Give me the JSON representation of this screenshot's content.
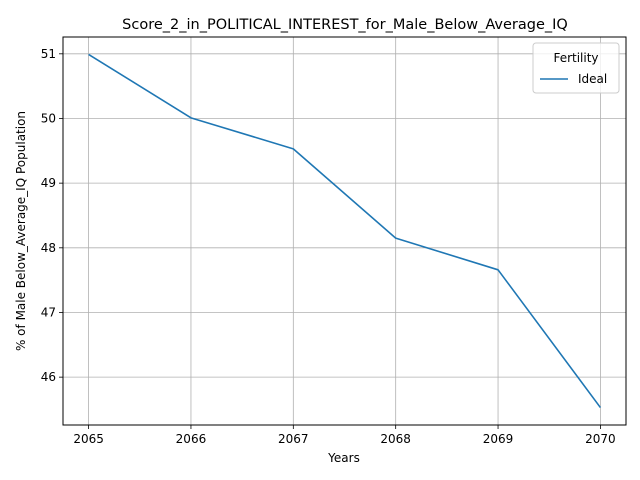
{
  "chart_data": {
    "type": "line",
    "title": "Score_2_in_POLITICAL_INTEREST_for_Male_Below_Average_IQ",
    "xlabel": "Years",
    "ylabel": "% of Male Below_Average_IQ Population",
    "x": [
      2065,
      2066,
      2067,
      2068,
      2069,
      2070
    ],
    "series": [
      {
        "name": "Ideal",
        "color": "#1f77b4",
        "values": [
          50.99,
          50.01,
          49.53,
          48.15,
          47.66,
          45.53
        ]
      }
    ],
    "xticks": [
      "2065",
      "2066",
      "2067",
      "2068",
      "2069",
      "2070"
    ],
    "yticks": [
      "46",
      "47",
      "48",
      "49",
      "50",
      "51"
    ],
    "xlim": [
      2064.75,
      2070.25
    ],
    "ylim": [
      45.26,
      51.26
    ],
    "grid": true,
    "legend": {
      "title": "Fertility",
      "placement": "top-right"
    }
  }
}
